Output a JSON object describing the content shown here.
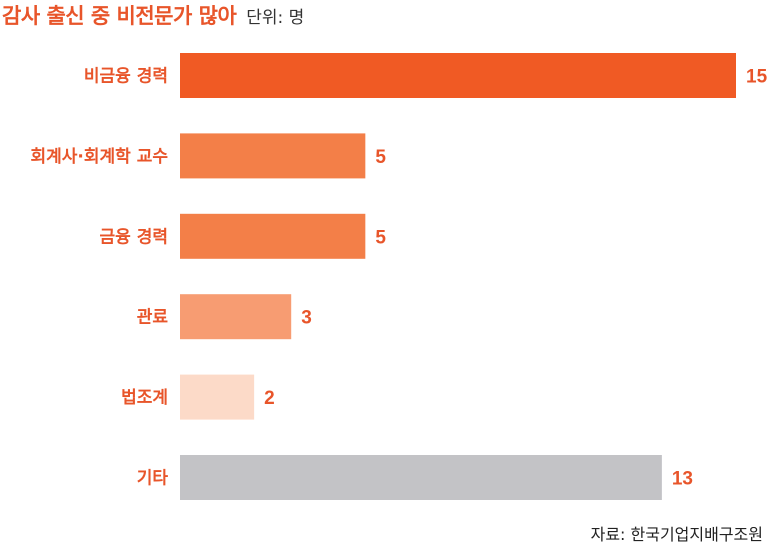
{
  "header": {
    "title": "감사 출신 중 비전문가 많아",
    "unit": "단위: 명"
  },
  "chart_data": {
    "type": "bar",
    "orientation": "horizontal",
    "categories": [
      "비금융 경력",
      "회계사·회계학 교수",
      "금융 경력",
      "관료",
      "법조계",
      "기타"
    ],
    "values": [
      15,
      5,
      5,
      3,
      2,
      13
    ],
    "colors": [
      "#f05a24",
      "#f37f48",
      "#f37f48",
      "#f79c72",
      "#fcdac8",
      "#c3c3c6"
    ],
    "label_color": "#e8552a",
    "category_label_color": "#e8552a",
    "xlim": [
      0,
      15
    ],
    "grid": false
  },
  "footer": {
    "source": "자료: 한국기업지배구조원"
  }
}
